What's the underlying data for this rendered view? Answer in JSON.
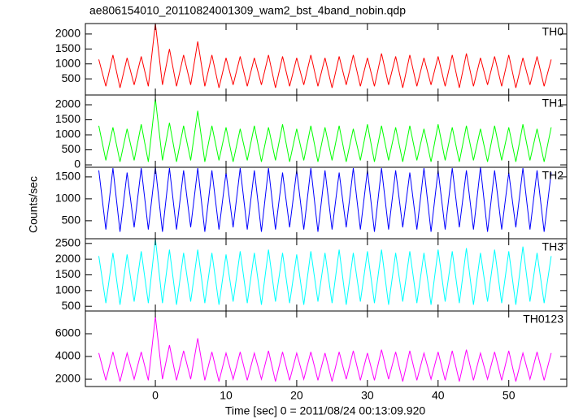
{
  "chart_data": [
    {
      "type": "line",
      "title": "ae806154010_20110824001309_wam2_bst_4band_nobin.qdp",
      "x": [
        -8,
        -7,
        -6,
        -5,
        -4,
        -3,
        -2,
        -1,
        0,
        1,
        2,
        3,
        4,
        5,
        6,
        7,
        8,
        9,
        10,
        11,
        12,
        13,
        14,
        15,
        16,
        17,
        18,
        19,
        20,
        21,
        22,
        23,
        24,
        25,
        26,
        27,
        28,
        29,
        30,
        31,
        32,
        33,
        34,
        35,
        36,
        37,
        38,
        39,
        40,
        41,
        42,
        43,
        44,
        45,
        46,
        47,
        48,
        49,
        50,
        51,
        52,
        53,
        54,
        55,
        56
      ],
      "series": [
        {
          "name": "TH0",
          "color": "#ff0000",
          "values": [
            1150,
            250,
            1300,
            200,
            1200,
            300,
            1250,
            250,
            2350,
            300,
            1500,
            250,
            1300,
            300,
            1750,
            250,
            1300,
            200,
            1200,
            300,
            1250,
            250,
            1200,
            300,
            1300,
            200,
            1250,
            250,
            1200,
            300,
            1300,
            250,
            1200,
            200,
            1250,
            300,
            1300,
            250,
            1200,
            250,
            1350,
            300,
            1250,
            200,
            1300,
            250,
            1200,
            300,
            1250,
            250,
            1300,
            200,
            1350,
            250,
            1200,
            300,
            1250,
            250,
            1300,
            200,
            1200,
            300,
            1250,
            250,
            1150
          ]
        }
      ],
      "xlim": [
        -9.9,
        58.2
      ],
      "ylim": [
        -40,
        2350
      ],
      "yticks": [
        500,
        1000,
        1500,
        2000
      ]
    },
    {
      "type": "line",
      "x": [
        -8,
        -7,
        -6,
        -5,
        -4,
        -3,
        -2,
        -1,
        0,
        1,
        2,
        3,
        4,
        5,
        6,
        7,
        8,
        9,
        10,
        11,
        12,
        13,
        14,
        15,
        16,
        17,
        18,
        19,
        20,
        21,
        22,
        23,
        24,
        25,
        26,
        27,
        28,
        29,
        30,
        31,
        32,
        33,
        34,
        35,
        36,
        37,
        38,
        39,
        40,
        41,
        42,
        43,
        44,
        45,
        46,
        47,
        48,
        49,
        50,
        51,
        52,
        53,
        54,
        55,
        56
      ],
      "series": [
        {
          "name": "TH1",
          "color": "#00ff00",
          "values": [
            1300,
            150,
            1250,
            100,
            1200,
            150,
            1350,
            100,
            2200,
            150,
            1400,
            100,
            1300,
            150,
            1800,
            100,
            1300,
            150,
            1250,
            100,
            1200,
            150,
            1300,
            100,
            1250,
            150,
            1350,
            100,
            1200,
            150,
            1300,
            100,
            1250,
            150,
            1300,
            100,
            1200,
            150,
            1350,
            100,
            1300,
            150,
            1250,
            100,
            1300,
            150,
            1200,
            100,
            1350,
            150,
            1250,
            100,
            1300,
            150,
            1200,
            100,
            1300,
            150,
            1250,
            100,
            1350,
            150,
            1200,
            100,
            1250
          ]
        }
      ],
      "xlim": [
        -9.9,
        58.2
      ],
      "ylim": [
        -80,
        2325
      ],
      "yticks": [
        0,
        500,
        1000,
        1500,
        2000
      ]
    },
    {
      "type": "line",
      "ylabel": "Counts/sec",
      "x": [
        -8,
        -7,
        -6,
        -5,
        -4,
        -3,
        -2,
        -1,
        0,
        1,
        2,
        3,
        4,
        5,
        6,
        7,
        8,
        9,
        10,
        11,
        12,
        13,
        14,
        15,
        16,
        17,
        18,
        19,
        20,
        21,
        22,
        23,
        24,
        25,
        26,
        27,
        28,
        29,
        30,
        31,
        32,
        33,
        34,
        35,
        36,
        37,
        38,
        39,
        40,
        41,
        42,
        43,
        44,
        45,
        46,
        47,
        48,
        49,
        50,
        51,
        52,
        53,
        54,
        55,
        56
      ],
      "series": [
        {
          "name": "TH2",
          "color": "#0000ff",
          "values": [
            1650,
            300,
            1700,
            250,
            1600,
            350,
            1700,
            300,
            1720,
            250,
            1700,
            300,
            1650,
            350,
            1700,
            250,
            1650,
            300,
            1600,
            350,
            1700,
            300,
            1650,
            250,
            1700,
            300,
            1600,
            350,
            1650,
            300,
            1700,
            250,
            1650,
            300,
            1600,
            350,
            1700,
            300,
            1650,
            250,
            1700,
            300,
            1650,
            350,
            1600,
            300,
            1700,
            250,
            1650,
            300,
            1700,
            350,
            1650,
            300,
            1720,
            250,
            1650,
            300,
            1600,
            350,
            1700,
            300,
            1650,
            250,
            1600
          ]
        }
      ],
      "xlim": [
        -9.9,
        58.2
      ],
      "ylim": [
        90,
        1720
      ],
      "yticks": [
        500,
        1000,
        1500
      ]
    },
    {
      "type": "line",
      "x": [
        -8,
        -7,
        -6,
        -5,
        -4,
        -3,
        -2,
        -1,
        0,
        1,
        2,
        3,
        4,
        5,
        6,
        7,
        8,
        9,
        10,
        11,
        12,
        13,
        14,
        15,
        16,
        17,
        18,
        19,
        20,
        21,
        22,
        23,
        24,
        25,
        26,
        27,
        28,
        29,
        30,
        31,
        32,
        33,
        34,
        35,
        36,
        37,
        38,
        39,
        40,
        41,
        42,
        43,
        44,
        45,
        46,
        47,
        48,
        49,
        50,
        51,
        52,
        53,
        54,
        55,
        56
      ],
      "series": [
        {
          "name": "TH3",
          "color": "#00ffff",
          "values": [
            2100,
            600,
            2200,
            550,
            2150,
            650,
            2250,
            600,
            2650,
            600,
            2300,
            550,
            2200,
            650,
            2300,
            600,
            2200,
            550,
            2150,
            650,
            2250,
            600,
            2200,
            550,
            2300,
            650,
            2200,
            600,
            2150,
            550,
            2250,
            650,
            2200,
            600,
            2300,
            550,
            2200,
            650,
            2250,
            600,
            2300,
            550,
            2200,
            650,
            2250,
            600,
            2200,
            550,
            2300,
            650,
            2250,
            600,
            2350,
            550,
            2200,
            650,
            2300,
            600,
            2250,
            550,
            2400,
            650,
            2200,
            600,
            2100
          ]
        }
      ],
      "xlim": [
        -9.9,
        58.2
      ],
      "ylim": [
        350,
        2650
      ],
      "yticks": [
        500,
        1000,
        1500,
        2000,
        2500
      ]
    },
    {
      "type": "line",
      "xlabel": "Time [sec] 0 = 2011/08/24 00:13:09.920",
      "x": [
        -8,
        -7,
        -6,
        -5,
        -4,
        -3,
        -2,
        -1,
        0,
        1,
        2,
        3,
        4,
        5,
        6,
        7,
        8,
        9,
        10,
        11,
        12,
        13,
        14,
        15,
        16,
        17,
        18,
        19,
        20,
        21,
        22,
        23,
        24,
        25,
        26,
        27,
        28,
        29,
        30,
        31,
        32,
        33,
        34,
        35,
        36,
        37,
        38,
        39,
        40,
        41,
        42,
        43,
        44,
        45,
        46,
        47,
        48,
        49,
        50,
        51,
        52,
        53,
        54,
        55,
        56
      ],
      "series": [
        {
          "name": "TH0123",
          "color": "#ff00ff",
          "values": [
            4300,
            1900,
            4400,
            1800,
            4300,
            2000,
            4400,
            1900,
            7500,
            2000,
            5000,
            1900,
            4500,
            2000,
            5600,
            1900,
            4400,
            1800,
            4300,
            2000,
            4400,
            1900,
            4300,
            2000,
            4500,
            1800,
            4400,
            1900,
            4300,
            2000,
            4400,
            1900,
            4300,
            1800,
            4400,
            2000,
            4500,
            1900,
            4300,
            1900,
            4600,
            2000,
            4400,
            1800,
            4500,
            1900,
            4300,
            2000,
            4400,
            1900,
            4500,
            1800,
            4600,
            1900,
            4300,
            2000,
            4400,
            1900,
            4500,
            1800,
            4300,
            2000,
            4400,
            1900,
            4300
          ]
        }
      ],
      "xlim": [
        -9.9,
        58.2
      ],
      "ylim": [
        1360,
        8000
      ],
      "yticks": [
        2000,
        4000,
        6000
      ],
      "xticks": [
        0,
        10,
        20,
        30,
        40,
        50
      ]
    }
  ]
}
